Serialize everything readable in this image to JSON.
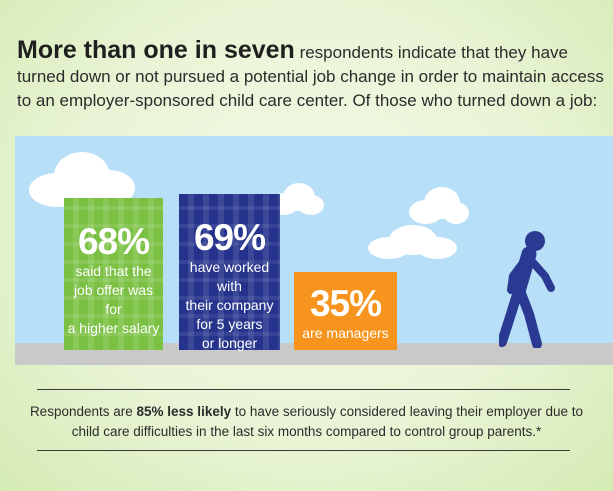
{
  "intro": {
    "lead": "More than one in seven",
    "rest": " respondents indicate that they have turned down or not pursued a potential job change in order to maintain access to an employer-sponsored child care center. Of those who turned down a job:"
  },
  "stats": [
    {
      "pct": "68%",
      "lines": [
        "said that the",
        "job offer was for",
        "a higher salary"
      ],
      "color": "#7ac143"
    },
    {
      "pct": "69%",
      "lines": [
        "have worked with",
        "their company",
        "for 5 years",
        "or longer"
      ],
      "color": "#26338c"
    },
    {
      "pct": "35%",
      "lines": [
        "are managers"
      ],
      "color": "#f7941d"
    }
  ],
  "footnote": {
    "pre": "Respondents are ",
    "bold": "85% less likely",
    "post": " to have seriously considered leaving their employer due to child care difficulties in the last six months compared to control group parents.*"
  },
  "colors": {
    "sky": "#b8dff8",
    "ground": "#c9c9c9",
    "person": "#2a3a92"
  }
}
